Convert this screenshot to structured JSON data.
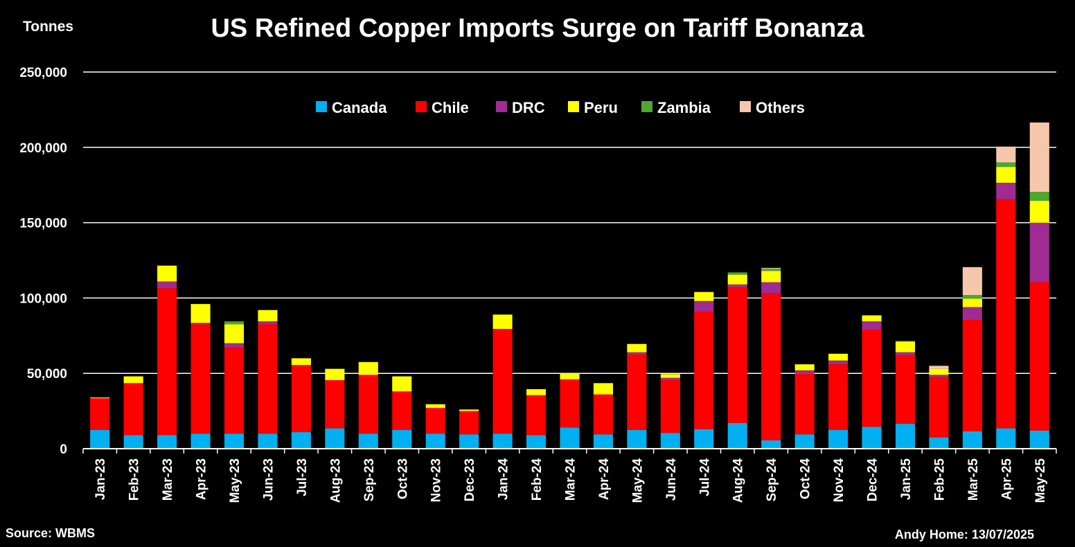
{
  "chart_data": {
    "type": "bar",
    "stacked": true,
    "title": "US Refined Copper Imports Surge on Tariff Bonanza",
    "ylabel": "Tonnes",
    "ylim": [
      0,
      250000
    ],
    "yticks": [
      0,
      50000,
      100000,
      150000,
      200000,
      250000
    ],
    "ytick_labels": [
      "0",
      "50,000",
      "100,000",
      "150,000",
      "200,000",
      "250,000"
    ],
    "grid": true,
    "legend_position": "top-center",
    "categories": [
      "Jan-23",
      "Feb-23",
      "Mar-23",
      "Apr-23",
      "May-23",
      "Jun-23",
      "Jul-23",
      "Aug-23",
      "Sep-23",
      "Oct-23",
      "Nov-23",
      "Dec-23",
      "Jan-24",
      "Feb-24",
      "Mar-24",
      "Apr-24",
      "May-24",
      "Jun-24",
      "Jul-24",
      "Aug-24",
      "Sep-24",
      "Oct-24",
      "Nov-24",
      "Dec-24",
      "Jan-25",
      "Feb-25",
      "Mar-25",
      "Apr-25",
      "May-25"
    ],
    "series": [
      {
        "name": "Canada",
        "color": "#00B0F0",
        "values": [
          12500,
          9000,
          9000,
          10000,
          10000,
          10000,
          11000,
          13500,
          10000,
          12500,
          10000,
          9500,
          10000,
          9000,
          14000,
          9500,
          12500,
          10500,
          13000,
          17000,
          5500,
          9500,
          12500,
          14500,
          16500,
          7500,
          11500,
          13500,
          12000
        ]
      },
      {
        "name": "Chile",
        "color": "#FF0000",
        "values": [
          21000,
          34500,
          97500,
          72500,
          57000,
          72500,
          44500,
          32000,
          39000,
          25500,
          17000,
          15500,
          69500,
          26500,
          32000,
          26500,
          50000,
          35000,
          78000,
          90000,
          97500,
          40500,
          43500,
          64500,
          45500,
          40000,
          74000,
          152000,
          98500
        ]
      },
      {
        "name": "DRC",
        "color": "#A02B93",
        "values": [
          0,
          0,
          4500,
          1000,
          3000,
          2000,
          0,
          0,
          0,
          0,
          0,
          0,
          0,
          0,
          0,
          0,
          1500,
          1500,
          7000,
          2000,
          7500,
          2000,
          2500,
          5500,
          2000,
          1500,
          8500,
          11000,
          39500
        ]
      },
      {
        "name": "Peru",
        "color": "#FFFF00",
        "values": [
          500,
          4500,
          10500,
          12500,
          12500,
          7500,
          4500,
          7500,
          8500,
          10000,
          2500,
          1000,
          9500,
          4000,
          4000,
          7500,
          5500,
          2500,
          6000,
          6500,
          7500,
          4000,
          4500,
          4000,
          7000,
          4000,
          5500,
          10500,
          14500
        ]
      },
      {
        "name": "Zambia",
        "color": "#4EA72E",
        "values": [
          0,
          0,
          0,
          0,
          2000,
          0,
          0,
          0,
          0,
          0,
          0,
          0,
          0,
          0,
          0,
          0,
          0,
          0,
          0,
          1500,
          1500,
          0,
          0,
          0,
          500,
          0,
          2500,
          3000,
          6000
        ]
      },
      {
        "name": "Others",
        "color": "#F7C7AC",
        "values": [
          0,
          0,
          0,
          0,
          0,
          0,
          0,
          0,
          0,
          0,
          0,
          0,
          0,
          0,
          0,
          0,
          0,
          0,
          0,
          0,
          500,
          0,
          0,
          0,
          0,
          2000,
          18500,
          10500,
          46000
        ]
      }
    ]
  },
  "footer": {
    "source": "Source: WBMS",
    "credit": "Andy Home: 13/07/2025"
  },
  "colors": {
    "background": "#000000",
    "text": "#ffffff",
    "grid": "#ffffff"
  }
}
